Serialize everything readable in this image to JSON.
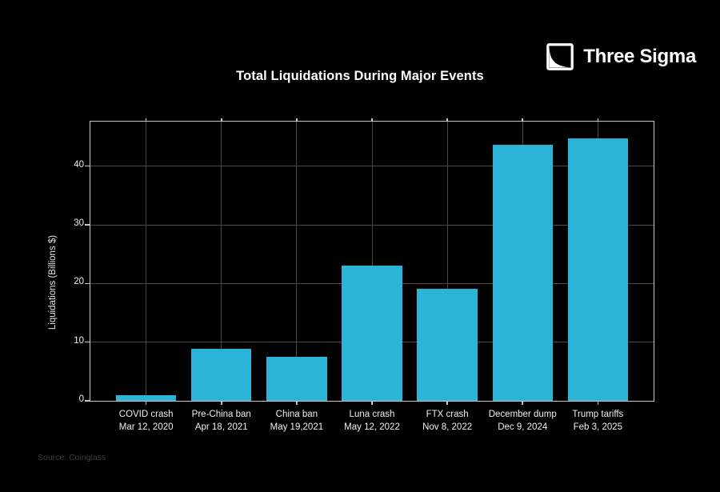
{
  "page": {
    "background": "#000000"
  },
  "logo": {
    "name": "Three Sigma",
    "icon": "area-under-curve-square-icon"
  },
  "source_note": "Source: Coinglass",
  "chart_data": {
    "type": "bar",
    "title": "Total Liquidations During Major Events",
    "xlabel": "",
    "ylabel": "Liquidations (Billions $)",
    "categories": [
      "COVID crash",
      "Pre-China ban",
      "China ban",
      "Luna crash",
      "FTX crash",
      "December dump",
      "Trump tariffs"
    ],
    "category_dates": [
      "Mar 12, 2020",
      "Apr 18, 2021",
      "May 19,2021",
      "May 12, 2022",
      "Nov 8, 2022",
      "Dec 9, 2024",
      "Feb 3, 2025"
    ],
    "values": [
      1.0,
      8.9,
      7.5,
      23.0,
      19.1,
      43.7,
      44.8
    ],
    "yticks": [
      0,
      10,
      20,
      30,
      40
    ],
    "ylim": [
      0,
      47.6
    ],
    "grid": true,
    "legend": "none",
    "bar_color": "#2bb3d8",
    "grid_color": "#4a4a4a",
    "frame_color": "#c9c9c9",
    "background_color": "#000000",
    "text_color": "#f0f0f0"
  }
}
